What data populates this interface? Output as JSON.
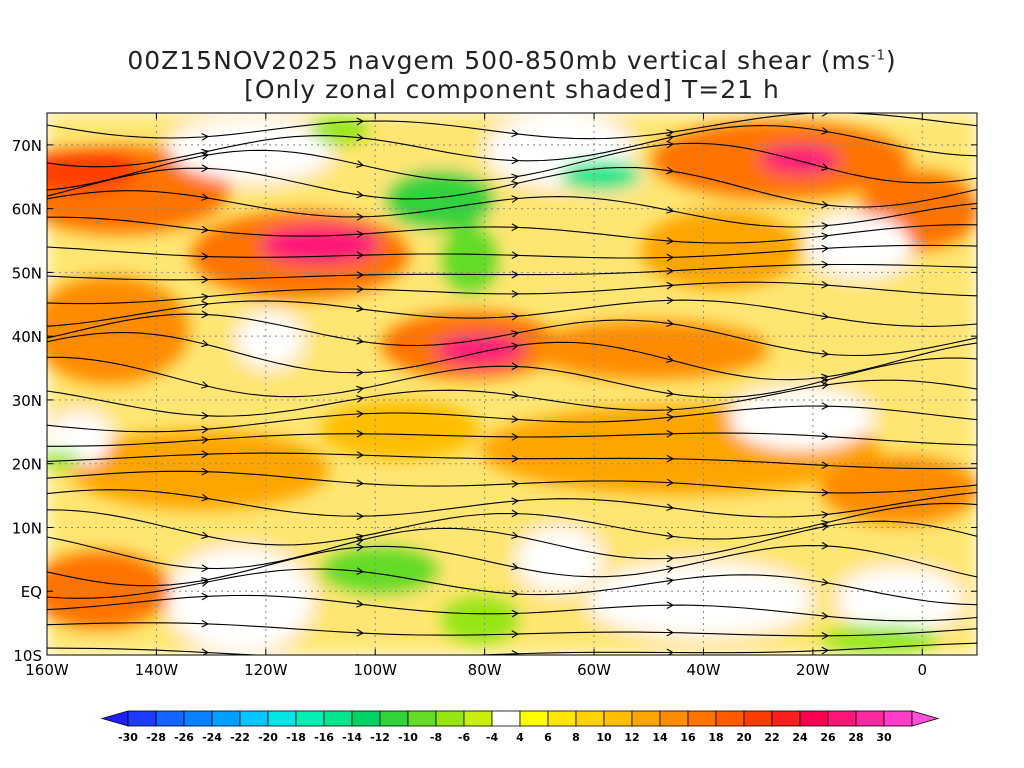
{
  "title": {
    "line1_prefix": "00Z15NOV2025 navgem 500-850mb vertical shear (ms",
    "line1_sup": "-1",
    "line1_suffix": ")",
    "line2": "[Only zonal component shaded] T=21 h"
  },
  "map": {
    "lon_range": [
      -160,
      10
    ],
    "lat_range": [
      -10,
      75
    ],
    "lat_ticks": [
      {
        "value": 70,
        "label": "70N"
      },
      {
        "value": 60,
        "label": "60N"
      },
      {
        "value": 50,
        "label": "50N"
      },
      {
        "value": 40,
        "label": "40N"
      },
      {
        "value": 30,
        "label": "30N"
      },
      {
        "value": 20,
        "label": "20N"
      },
      {
        "value": 10,
        "label": "10N"
      },
      {
        "value": 0,
        "label": "EQ"
      },
      {
        "value": -10,
        "label": "10S"
      }
    ],
    "lon_ticks": [
      {
        "value": -160,
        "label": "160W"
      },
      {
        "value": -140,
        "label": "140W"
      },
      {
        "value": -120,
        "label": "120W"
      },
      {
        "value": -100,
        "label": "100W"
      },
      {
        "value": -80,
        "label": "80W"
      },
      {
        "value": -60,
        "label": "60W"
      },
      {
        "value": -40,
        "label": "40W"
      },
      {
        "value": -20,
        "label": "20W"
      },
      {
        "value": 0,
        "label": "0"
      }
    ]
  },
  "colorbar": {
    "labels": [
      "-30",
      "-28",
      "-26",
      "-24",
      "-22",
      "-20",
      "-18",
      "-16",
      "-14",
      "-12",
      "-10",
      "-8",
      "-6",
      "-4",
      "4",
      "6",
      "8",
      "10",
      "12",
      "14",
      "16",
      "18",
      "20",
      "22",
      "24",
      "26",
      "28",
      "30"
    ],
    "colors": [
      "#1e3cff",
      "#1464ff",
      "#0a82ff",
      "#00a0ff",
      "#00c8ff",
      "#00e6e6",
      "#00f0b4",
      "#00e68c",
      "#00d264",
      "#32d23c",
      "#64dc28",
      "#96e614",
      "#c8f00a",
      "#ffffff",
      "#ffff00",
      "#ffe600",
      "#ffd200",
      "#ffbe00",
      "#ffa500",
      "#ff8c00",
      "#ff7300",
      "#ff5a00",
      "#ff3c00",
      "#ff1e1e",
      "#ff0050",
      "#ff1478",
      "#ff28a0",
      "#ff3cc8"
    ],
    "low_color": "#1e1eff",
    "high_color": "#ff50dc"
  }
}
